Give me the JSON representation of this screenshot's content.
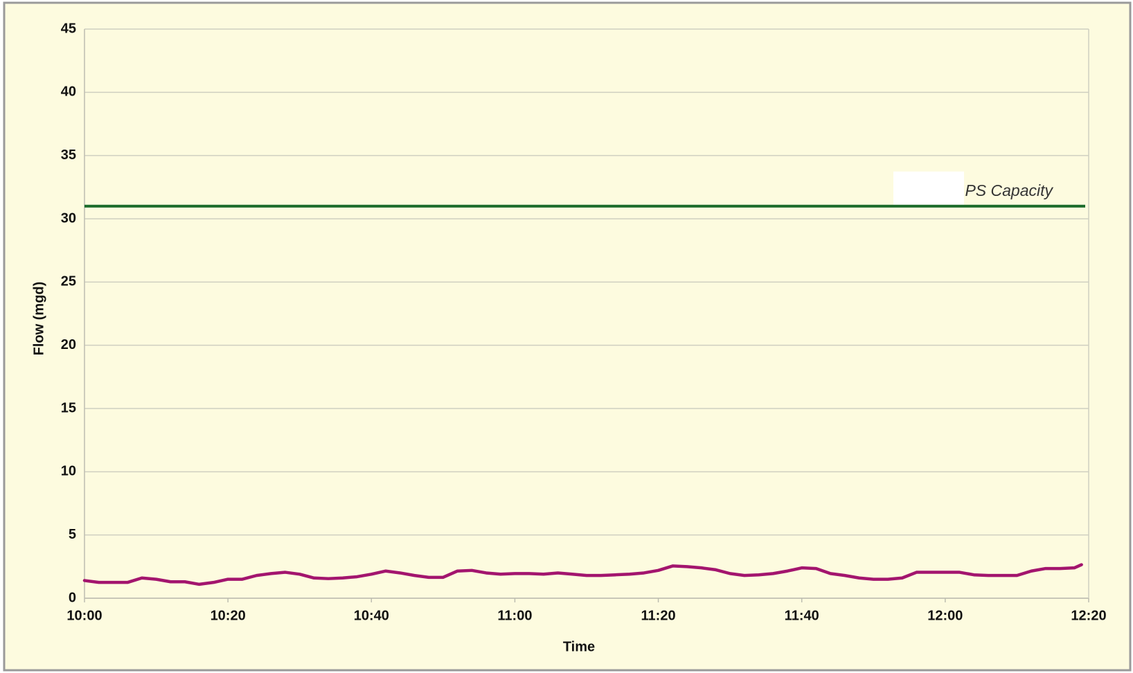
{
  "chart_data": {
    "type": "line",
    "xlabel": "Time",
    "ylabel": "Flow (mgd)",
    "x": [
      "10:00",
      "10:02",
      "10:04",
      "10:06",
      "10:08",
      "10:10",
      "10:12",
      "10:14",
      "10:16",
      "10:18",
      "10:20",
      "10:22",
      "10:24",
      "10:26",
      "10:28",
      "10:30",
      "10:32",
      "10:34",
      "10:36",
      "10:38",
      "10:40",
      "10:42",
      "10:44",
      "10:46",
      "10:48",
      "10:50",
      "10:52",
      "10:54",
      "10:56",
      "10:58",
      "11:00",
      "11:02",
      "11:04",
      "11:06",
      "11:08",
      "11:10",
      "11:12",
      "11:14",
      "11:16",
      "11:18",
      "11:20",
      "11:22",
      "11:24",
      "11:26",
      "11:28",
      "11:30",
      "11:32",
      "11:34",
      "11:36",
      "11:38",
      "11:40",
      "11:42",
      "11:44",
      "11:46",
      "11:48",
      "11:50",
      "11:52",
      "11:54",
      "11:56",
      "11:58",
      "12:00",
      "12:02",
      "12:04",
      "12:06",
      "12:08",
      "12:10",
      "12:12",
      "12:14",
      "12:16",
      "12:18",
      "12:19"
    ],
    "series": [
      {
        "color": "#a3156e",
        "values": [
          1.4,
          1.25,
          1.25,
          1.25,
          1.6,
          1.5,
          1.3,
          1.3,
          1.1,
          1.25,
          1.5,
          1.5,
          1.8,
          1.95,
          2.05,
          1.9,
          1.6,
          1.55,
          1.6,
          1.7,
          1.9,
          2.15,
          2.0,
          1.8,
          1.65,
          1.65,
          2.15,
          2.2,
          2.0,
          1.9,
          1.95,
          1.95,
          1.9,
          2.0,
          1.9,
          1.8,
          1.8,
          1.85,
          1.9,
          2.0,
          2.2,
          2.55,
          2.5,
          2.4,
          2.25,
          1.95,
          1.8,
          1.85,
          1.95,
          2.15,
          2.4,
          2.35,
          1.95,
          1.8,
          1.6,
          1.5,
          1.5,
          1.6,
          2.05,
          2.05,
          2.05,
          2.05,
          1.85,
          1.8,
          1.8,
          1.8,
          2.15,
          2.35,
          2.35,
          2.4,
          2.65
        ]
      }
    ],
    "reference_line": {
      "label": "PS Capacity",
      "value": 31,
      "color": "#1a6b2a"
    },
    "xlim": [
      "10:00",
      "12:20"
    ],
    "xticks": [
      "10:00",
      "10:20",
      "10:40",
      "11:00",
      "11:20",
      "11:40",
      "12:00",
      "12:20"
    ],
    "ylim": [
      0,
      45
    ],
    "yticks": [
      0,
      5,
      10,
      15,
      20,
      25,
      30,
      35,
      40,
      45
    ],
    "grid": true
  }
}
